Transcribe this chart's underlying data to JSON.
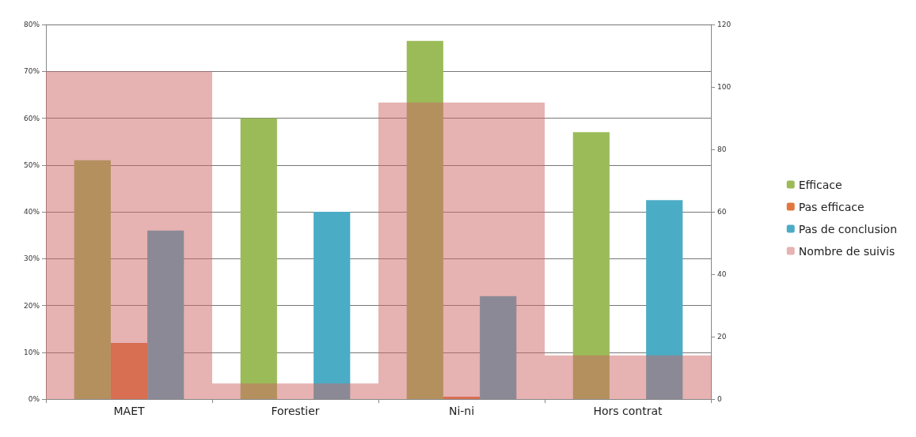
{
  "chart_data": {
    "type": "bar",
    "categories": [
      "MAET",
      "Forestier",
      "Ni-ni",
      "Hors contrat"
    ],
    "series": [
      {
        "name": "Efficace",
        "color": "#9bbb59",
        "values": [
          51,
          60,
          76.5,
          57
        ]
      },
      {
        "name": "Pas efficace",
        "color": "#e2763f",
        "values": [
          12,
          0,
          0.5,
          0
        ]
      },
      {
        "name": "Pas de conclusion",
        "color": "#4bacc6",
        "values": [
          36,
          40,
          22,
          42.5
        ]
      },
      {
        "name": "Nombre de suivis",
        "color": "#e6b2b2",
        "axis": "y2",
        "values": [
          105,
          5,
          95,
          14
        ]
      }
    ],
    "ylim": [
      0,
      80
    ],
    "yticks": [
      {
        "value": 0,
        "label": "0%"
      },
      {
        "value": 10,
        "label": "10%"
      },
      {
        "value": 20,
        "label": "20%"
      },
      {
        "value": 30,
        "label": "30%"
      },
      {
        "value": 40,
        "label": "40%"
      },
      {
        "value": 50,
        "label": "50%"
      },
      {
        "value": 60,
        "label": "60%"
      },
      {
        "value": 70,
        "label": "70%"
      },
      {
        "value": 80,
        "label": "80%"
      }
    ],
    "y2lim": [
      0,
      120
    ],
    "y2ticks": [
      0,
      20,
      40,
      60,
      80,
      100,
      120
    ],
    "grid": "y",
    "legend": "right"
  }
}
